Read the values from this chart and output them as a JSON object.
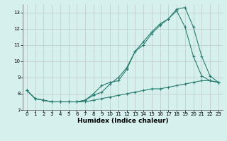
{
  "xlabel": "Humidex (Indice chaleur)",
  "x": [
    0,
    1,
    2,
    3,
    4,
    5,
    6,
    7,
    8,
    9,
    10,
    11,
    12,
    13,
    14,
    15,
    16,
    17,
    18,
    19,
    20,
    21,
    22,
    23
  ],
  "line1": [
    8.2,
    7.7,
    7.6,
    7.5,
    7.5,
    7.5,
    7.5,
    7.6,
    8.0,
    8.5,
    8.7,
    8.8,
    9.5,
    10.6,
    11.0,
    11.7,
    12.2,
    12.6,
    13.1,
    12.1,
    10.3,
    9.1,
    8.8,
    8.7
  ],
  "line2": [
    8.2,
    7.7,
    7.6,
    7.5,
    7.5,
    7.5,
    7.5,
    7.6,
    7.9,
    8.1,
    8.6,
    9.0,
    9.6,
    10.6,
    11.2,
    11.8,
    12.3,
    12.6,
    13.2,
    13.3,
    12.1,
    10.3,
    9.1,
    8.7
  ],
  "line3": [
    8.2,
    7.7,
    7.6,
    7.5,
    7.5,
    7.5,
    7.5,
    7.5,
    7.6,
    7.7,
    7.8,
    7.9,
    8.0,
    8.1,
    8.2,
    8.3,
    8.3,
    8.4,
    8.5,
    8.6,
    8.7,
    8.8,
    8.8,
    8.7
  ],
  "line_color": "#2a7d6f",
  "bg_color": "#d6f0ee",
  "grid_color": "#c0c8c8",
  "ylim": [
    7.0,
    13.5
  ],
  "xlim": [
    -0.5,
    23.5
  ],
  "yticks": [
    7,
    8,
    9,
    10,
    11,
    12,
    13
  ],
  "xticks": [
    0,
    1,
    2,
    3,
    4,
    5,
    6,
    7,
    8,
    9,
    10,
    11,
    12,
    13,
    14,
    15,
    16,
    17,
    18,
    19,
    20,
    21,
    22,
    23
  ]
}
